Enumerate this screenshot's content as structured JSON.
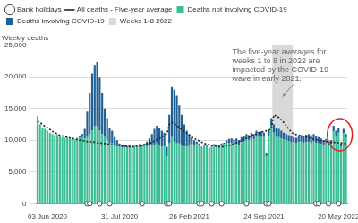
{
  "chart_data": {
    "type": "bar",
    "y_label": "Weekly deaths",
    "annotation": [
      "The five-year averages for",
      "weeks 1 to 8 in 2022 are",
      "impacted by the COVID-19",
      "wave in early 2021."
    ],
    "categories": [
      null,
      null,
      null,
      null,
      "03 Jun 2020",
      null,
      null,
      null,
      null,
      null,
      null,
      null,
      null,
      null,
      null,
      null,
      null,
      null,
      null,
      null,
      null,
      null,
      null,
      null,
      null,
      null,
      null,
      null,
      null,
      null,
      null,
      null,
      null,
      "31 Jul 2020",
      null,
      null,
      null,
      null,
      null,
      null,
      null,
      null,
      null,
      null,
      null,
      null,
      null,
      null,
      null,
      null,
      null,
      null,
      null,
      null,
      null,
      null,
      null,
      null,
      null,
      null,
      null,
      "26 Feb 2021",
      null,
      null,
      null,
      null,
      null,
      null,
      null,
      null,
      null,
      null,
      null,
      null,
      null,
      null,
      null,
      null,
      null,
      null,
      null,
      null,
      null,
      null,
      null,
      null,
      null,
      null,
      null,
      null,
      null,
      "24 Sep 2021",
      null,
      null,
      null,
      null,
      null,
      null,
      null,
      null,
      null,
      null,
      null,
      null,
      null,
      null,
      null,
      null,
      null,
      null,
      null,
      null,
      null,
      null,
      null,
      null,
      null,
      null,
      null,
      null,
      null,
      "20 May 2022",
      null,
      null,
      null
    ],
    "series": [
      {
        "name": "All deaths - Five-year average",
        "type": "line",
        "line_style": "dotted",
        "color": "#222222",
        "values": [
          13000,
          12800,
          12500,
          12200,
          12000,
          11700,
          11400,
          11200,
          11000,
          10800,
          10700,
          10600,
          10500,
          10400,
          10300,
          10200,
          10100,
          10000,
          10000,
          9900,
          9800,
          9800,
          9700,
          9700,
          9600,
          9600,
          9500,
          9500,
          9400,
          9400,
          9300,
          9300,
          9200,
          9200,
          9100,
          9100,
          9100,
          9000,
          9000,
          9000,
          9100,
          9100,
          9200,
          9300,
          9400,
          9500,
          9700,
          9900,
          10100,
          10300,
          10500,
          10800,
          11000,
          12500,
          12800,
          12600,
          12300,
          12000,
          11700,
          11400,
          11100,
          10800,
          10500,
          10300,
          10100,
          9900,
          9700,
          9500,
          9400,
          9300,
          9200,
          9100,
          9100,
          9000,
          9000,
          9000,
          9100,
          9200,
          9300,
          9500,
          9600,
          9800,
          10000,
          10100,
          10300,
          10500,
          10700,
          10900,
          11000,
          11200,
          11300,
          11400,
          11500,
          11600,
          11800,
          14000,
          13800,
          13600,
          13200,
          12800,
          12300,
          11800,
          11300,
          11000,
          10900,
          10800,
          10700,
          10600,
          10500,
          10400,
          10300,
          10200,
          10100,
          10000,
          9900,
          9900,
          9800,
          9800,
          9700,
          9700,
          9600,
          9600,
          9600,
          9500,
          9500
        ]
      },
      {
        "name": "Deaths not involving COVID-19",
        "type": "bar",
        "color": "#3dbd96",
        "values": [
          13800,
          12500,
          12000,
          11800,
          11500,
          11200,
          11000,
          10800,
          10900,
          10600,
          10500,
          10400,
          10500,
          10300,
          10200,
          10100,
          10400,
          10400,
          10500,
          10300,
          10500,
          11000,
          11500,
          12300,
          12300,
          11500,
          11000,
          10500,
          10000,
          9500,
          9500,
          9300,
          9200,
          9000,
          8900,
          8900,
          8900,
          9050,
          8850,
          9150,
          8950,
          9200,
          9000,
          9100,
          9100,
          9100,
          9200,
          9300,
          9500,
          9200,
          9000,
          9000,
          7500,
          9500,
          10500,
          9800,
          9500,
          9500,
          9200,
          9000,
          9000,
          9300,
          9400,
          9300,
          9400,
          9250,
          8850,
          9200,
          9100,
          8720,
          9020,
          9320,
          9200,
          9100,
          9350,
          9400,
          9600,
          9600,
          9600,
          9400,
          9500,
          9300,
          9700,
          9800,
          10100,
          10000,
          10300,
          10100,
          10600,
          10500,
          10600,
          10500,
          7500,
          10700,
          12300,
          11200,
          10600,
          10500,
          10300,
          10100,
          10000,
          9900,
          9700,
          9700,
          9600,
          9700,
          9800,
          9600,
          9700,
          9700,
          9500,
          9800,
          9600,
          9500,
          9400,
          9200,
          9500,
          9200,
          9400,
          11400,
          10700,
          11200,
          9000,
          11100,
          10400
        ]
      },
      {
        "name": "Deaths involving COVID-19",
        "type": "bar",
        "color": "#206095",
        "values": [
          0,
          0,
          0,
          0,
          0,
          0,
          0,
          0,
          0,
          0,
          0,
          0,
          0,
          0,
          0,
          0,
          0,
          200,
          500,
          1500,
          4000,
          6500,
          9000,
          9500,
          10000,
          8500,
          6500,
          4500,
          3500,
          2500,
          2000,
          1200,
          800,
          500,
          400,
          300,
          200,
          150,
          150,
          150,
          150,
          200,
          300,
          400,
          700,
          1200,
          1800,
          2500,
          2800,
          2800,
          2500,
          2200,
          1500,
          4500,
          8000,
          8200,
          7500,
          6000,
          4800,
          3500,
          2500,
          1700,
          1100,
          700,
          400,
          250,
          150,
          100,
          100,
          80,
          80,
          80,
          100,
          100,
          150,
          200,
          400,
          600,
          700,
          700,
          800,
          700,
          800,
          900,
          900,
          800,
          900,
          900,
          900,
          800,
          800,
          700,
          500,
          800,
          1200,
          1300,
          1400,
          1300,
          1200,
          1100,
          1000,
          900,
          900,
          800,
          800,
          900,
          1000,
          1100,
          1200,
          1300,
          1300,
          1200,
          1100,
          1000,
          900,
          800,
          700,
          600,
          600,
          900,
          800,
          800,
          500,
          700,
          600
        ]
      },
      {
        "name": "Bank holidays",
        "type": "scatter",
        "marker": "circle",
        "color": "#444444",
        "values": [
          null,
          null,
          null,
          null,
          null,
          null,
          null,
          null,
          null,
          null,
          null,
          null,
          null,
          null,
          null,
          null,
          null,
          null,
          null,
          null,
          0,
          0,
          null,
          null,
          null,
          0,
          null,
          null,
          null,
          0,
          null,
          null,
          null,
          null,
          null,
          null,
          null,
          null,
          null,
          null,
          null,
          null,
          0,
          null,
          null,
          null,
          null,
          null,
          null,
          null,
          null,
          null,
          0,
          0,
          null,
          null,
          null,
          null,
          null,
          null,
          null,
          null,
          null,
          null,
          null,
          0,
          0,
          null,
          null,
          null,
          0,
          null,
          null,
          null,
          0,
          null,
          null,
          null,
          null,
          null,
          null,
          null,
          null,
          null,
          0,
          null,
          null,
          null,
          null,
          null,
          null,
          null,
          0,
          0,
          null,
          null,
          null,
          null,
          null,
          null,
          null,
          null,
          null,
          null,
          null,
          null,
          null,
          null,
          null,
          null,
          null,
          null,
          0,
          0,
          null,
          null,
          null,
          0,
          null,
          null,
          null,
          0,
          null,
          null,
          null
        ]
      },
      {
        "name": "Weeks 1-8 2022",
        "type": "band",
        "color": "#d9d9d9",
        "values": [
          null,
          null,
          null,
          null,
          null,
          null,
          null,
          null,
          null,
          null,
          null,
          null,
          null,
          null,
          null,
          null,
          null,
          null,
          null,
          null,
          null,
          null,
          null,
          null,
          null,
          null,
          null,
          null,
          null,
          null,
          null,
          null,
          null,
          null,
          null,
          null,
          null,
          null,
          null,
          null,
          null,
          null,
          null,
          null,
          null,
          null,
          null,
          null,
          null,
          null,
          null,
          null,
          null,
          null,
          null,
          null,
          null,
          null,
          null,
          null,
          null,
          null,
          null,
          null,
          null,
          null,
          null,
          null,
          null,
          null,
          null,
          null,
          null,
          null,
          null,
          null,
          null,
          null,
          null,
          null,
          null,
          null,
          null,
          null,
          null,
          null,
          null,
          null,
          null,
          null,
          null,
          null,
          null,
          null,
          null,
          25000,
          25000,
          25000,
          25000,
          25000,
          25000,
          25000,
          25000,
          null,
          null,
          null,
          null,
          null,
          null,
          null,
          null,
          null,
          null,
          null,
          null,
          null,
          null,
          null,
          null,
          null,
          null,
          null,
          null,
          null,
          null
        ]
      }
    ],
    "ylim": [
      0,
      25000
    ],
    "yticks": [
      0,
      {
        "value": 5000,
        "label": "5,000"
      },
      {
        "value": 10000,
        "label": "10,000"
      },
      {
        "value": 15000,
        "label": "15,000"
      },
      {
        "value": 20000,
        "label": "20,000"
      },
      {
        "value": 25000,
        "label": "25,000"
      }
    ],
    "stacked": true,
    "grid": true,
    "legend": "top"
  }
}
